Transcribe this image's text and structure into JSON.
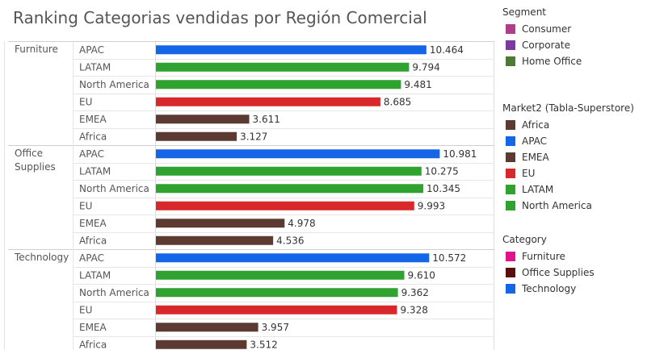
{
  "title": "Ranking Categorias vendidas por Región Comercial",
  "chart_data": {
    "type": "bar",
    "orientation": "horizontal",
    "grid": true,
    "groups": [
      {
        "label": "Furniture",
        "bars": [
          {
            "market": "APAC",
            "value": 10.464,
            "value_label": "10.464"
          },
          {
            "market": "LATAM",
            "value": 9.794,
            "value_label": "9.794"
          },
          {
            "market": "North America",
            "value": 9.481,
            "value_label": "9.481"
          },
          {
            "market": "EU",
            "value": 8.685,
            "value_label": "8.685"
          },
          {
            "market": "EMEA",
            "value": 3.611,
            "value_label": "3.611"
          },
          {
            "market": "Africa",
            "value": 3.127,
            "value_label": "3.127"
          }
        ]
      },
      {
        "label": "Office Supplies",
        "bars": [
          {
            "market": "APAC",
            "value": 10.981,
            "value_label": "10.981"
          },
          {
            "market": "LATAM",
            "value": 10.275,
            "value_label": "10.275"
          },
          {
            "market": "North America",
            "value": 10.345,
            "value_label": "10.345"
          },
          {
            "market": "EU",
            "value": 9.993,
            "value_label": "9.993"
          },
          {
            "market": "EMEA",
            "value": 4.978,
            "value_label": "4.978"
          },
          {
            "market": "Africa",
            "value": 4.536,
            "value_label": "4.536"
          }
        ]
      },
      {
        "label": "Technology",
        "bars": [
          {
            "market": "APAC",
            "value": 10.572,
            "value_label": "10.572"
          },
          {
            "market": "LATAM",
            "value": 9.61,
            "value_label": "9.610"
          },
          {
            "market": "North America",
            "value": 9.362,
            "value_label": "9.362"
          },
          {
            "market": "EU",
            "value": 9.328,
            "value_label": "9.328"
          },
          {
            "market": "EMEA",
            "value": 3.957,
            "value_label": "3.957"
          },
          {
            "market": "Africa",
            "value": 3.512,
            "value_label": "3.512"
          }
        ]
      }
    ],
    "market_colors": {
      "Africa": "#5c3a32",
      "APAC": "#1565e8",
      "EMEA": "#5c3a32",
      "EU": "#d8282c",
      "LATAM": "#2fa22f",
      "North America": "#2fa22f"
    }
  },
  "legends": [
    {
      "title": "Segment",
      "items": [
        {
          "label": "Consumer",
          "color": "#b03c8c"
        },
        {
          "label": "Corporate",
          "color": "#7b3aa0"
        },
        {
          "label": "Home Office",
          "color": "#4f7a35"
        }
      ]
    },
    {
      "title": "Market2 (Tabla-Superstore)",
      "items": [
        {
          "label": "Africa",
          "color": "#5c3a32"
        },
        {
          "label": "APAC",
          "color": "#1565e8"
        },
        {
          "label": "EMEA",
          "color": "#5c3a32"
        },
        {
          "label": "EU",
          "color": "#d8282c"
        },
        {
          "label": "LATAM",
          "color": "#2fa22f"
        },
        {
          "label": "North America",
          "color": "#2fa22f"
        }
      ]
    },
    {
      "title": "Category",
      "items": [
        {
          "label": "Furniture",
          "color": "#e0128c"
        },
        {
          "label": "Office Supplies",
          "color": "#5a0e0e"
        },
        {
          "label": "Technology",
          "color": "#1565e8"
        }
      ]
    }
  ]
}
